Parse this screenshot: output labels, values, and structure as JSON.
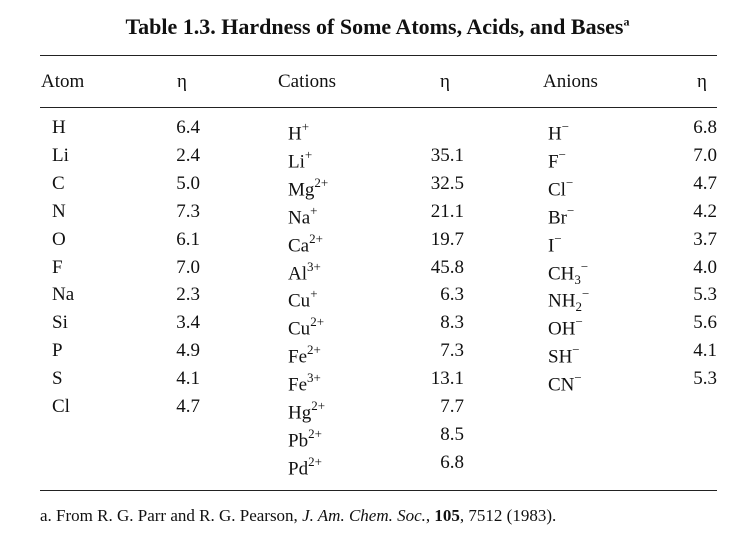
{
  "title": "Table 1.3.  Hardness of Some Atoms, Acids, and Bases",
  "title_footnote_mark": "a",
  "headers": {
    "atom": "Atom",
    "eta1": "η",
    "cations": "Cations",
    "eta2": "η",
    "anions": "Anions",
    "eta3": "η"
  },
  "atoms": [
    {
      "name": "H",
      "eta": "6.4"
    },
    {
      "name": "Li",
      "eta": "2.4"
    },
    {
      "name": "C",
      "eta": "5.0"
    },
    {
      "name": "N",
      "eta": "7.3"
    },
    {
      "name": "O",
      "eta": "6.1"
    },
    {
      "name": "F",
      "eta": "7.0"
    },
    {
      "name": "Na",
      "eta": "2.3"
    },
    {
      "name": "Si",
      "eta": "3.4"
    },
    {
      "name": "P",
      "eta": "4.9"
    },
    {
      "name": "S",
      "eta": "4.1"
    },
    {
      "name": "Cl",
      "eta": "4.7"
    }
  ],
  "cations": [
    {
      "base": "H",
      "sub": "",
      "sup": "+",
      "eta": ""
    },
    {
      "base": "Li",
      "sub": "",
      "sup": "+",
      "eta": "35.1"
    },
    {
      "base": "Mg",
      "sub": "",
      "sup": "2+",
      "eta": "32.5"
    },
    {
      "base": "Na",
      "sub": "",
      "sup": "+",
      "eta": "21.1"
    },
    {
      "base": "Ca",
      "sub": "",
      "sup": "2+",
      "eta": "19.7"
    },
    {
      "base": "Al",
      "sub": "",
      "sup": "3+",
      "eta": "45.8"
    },
    {
      "base": "Cu",
      "sub": "",
      "sup": "+",
      "eta": "6.3"
    },
    {
      "base": "Cu",
      "sub": "",
      "sup": "2+",
      "eta": "8.3"
    },
    {
      "base": "Fe",
      "sub": "",
      "sup": "2+",
      "eta": "7.3"
    },
    {
      "base": "Fe",
      "sub": "",
      "sup": "3+",
      "eta": "13.1"
    },
    {
      "base": "Hg",
      "sub": "",
      "sup": "2+",
      "eta": "7.7"
    },
    {
      "base": "Pb",
      "sub": "",
      "sup": "2+",
      "eta": "8.5"
    },
    {
      "base": "Pd",
      "sub": "",
      "sup": "2+",
      "eta": "6.8"
    }
  ],
  "anions": [
    {
      "base": "H",
      "sub": "",
      "sup": "−",
      "eta": "6.8"
    },
    {
      "base": "F",
      "sub": "",
      "sup": "−",
      "eta": "7.0"
    },
    {
      "base": "Cl",
      "sub": "",
      "sup": "−",
      "eta": "4.7"
    },
    {
      "base": "Br",
      "sub": "",
      "sup": "−",
      "eta": "4.2"
    },
    {
      "base": "I",
      "sub": "",
      "sup": "−",
      "eta": "3.7"
    },
    {
      "base": "CH",
      "sub": "3",
      "sup": "−",
      "eta": "4.0"
    },
    {
      "base": "NH",
      "sub": "2",
      "sup": "−",
      "eta": "5.3"
    },
    {
      "base": "OH",
      "sub": "",
      "sup": "−",
      "eta": "5.6"
    },
    {
      "base": "SH",
      "sub": "",
      "sup": "−",
      "eta": "4.1"
    },
    {
      "base": "CN",
      "sub": "",
      "sup": "−",
      "eta": "5.3"
    }
  ],
  "footnote": {
    "prefix": "a. From R. G. Parr and R. G. Pearson, ",
    "journal": "J. Am. Chem. Soc.",
    "sep1": ", ",
    "volume": "105",
    "rest": ", 7512 (1983)."
  }
}
